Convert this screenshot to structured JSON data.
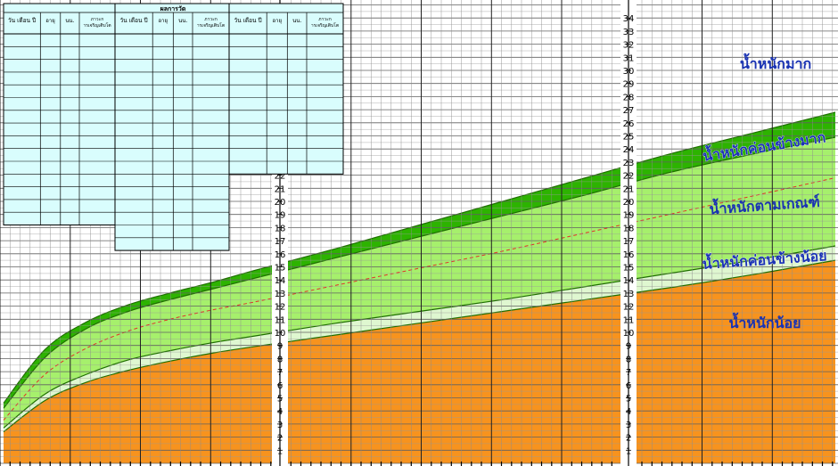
{
  "table": {
    "title": "ผลการวัด",
    "group_count": 3,
    "headers": [
      "วัน เดือน ปี",
      "อายุ",
      "นน.",
      "ภาวะการเจริญเติบโต"
    ],
    "row_counts": [
      15,
      17,
      11
    ]
  },
  "colors": {
    "too_heavy": "#ffffff",
    "somewhat_heavy": "#2db300",
    "normal": "#a6f06c",
    "somewhat_light": "#dff7d0",
    "light": "#f7931e",
    "median_line": "#e0322b",
    "label_text": "#1a33b3",
    "table_bg": "#d9fdfd"
  },
  "chart_data": {
    "type": "area",
    "title": "",
    "xlabel": "",
    "ylabel": "",
    "ylim": [
      0,
      35
    ],
    "x": [
      0,
      0.05,
      0.1,
      0.15,
      0.2,
      0.25,
      0.3,
      0.4,
      0.5,
      0.6,
      0.7,
      0.8,
      0.9,
      1.0
    ],
    "y_ticks": [
      "1",
      "2",
      "3",
      "4",
      "5",
      "6",
      "7",
      "8",
      "9",
      "10",
      "11",
      "12",
      "13",
      "14",
      "15",
      "16",
      "17",
      "18",
      "19",
      "20",
      "21",
      "22",
      "23",
      "24",
      "25",
      "26",
      "27",
      "28",
      "29",
      "30",
      "31",
      "32",
      "33",
      "34"
    ],
    "series": [
      {
        "name": "น้ำหนักน้อย",
        "values": [
          2.4,
          4.8,
          6.2,
          7.1,
          7.8,
          8.4,
          8.9,
          9.8,
          10.7,
          11.6,
          12.5,
          13.4,
          14.4,
          15.5
        ]
      },
      {
        "name": "น้ำหนักค่อนข้างน้อย",
        "values": [
          2.7,
          5.3,
          6.8,
          7.9,
          8.6,
          9.2,
          9.7,
          10.7,
          11.6,
          12.5,
          13.5,
          14.5,
          15.5,
          16.6
        ]
      },
      {
        "name": "น้ำหนักตามเกณฑ์",
        "values": [
          3.3,
          6.8,
          8.8,
          10.1,
          11.0,
          11.7,
          12.3,
          13.6,
          14.9,
          16.2,
          17.6,
          19.0,
          20.4,
          21.8
        ]
      },
      {
        "name": "น้ำหนักค่อนข้างมาก",
        "values": [
          4.2,
          8.1,
          10.3,
          11.6,
          12.5,
          13.3,
          14.1,
          15.7,
          17.3,
          18.9,
          20.5,
          22.2,
          23.6,
          24.9
        ]
      },
      {
        "name": "น้ำหนักมาก",
        "values": [
          4.6,
          8.7,
          10.8,
          12.1,
          13.0,
          13.8,
          14.7,
          16.4,
          18.2,
          20.0,
          21.8,
          23.6,
          25.2,
          26.8
        ]
      }
    ],
    "labels": [
      "น้ำหนักมาก",
      "น้ำหนักค่อนข้างมาก",
      "น้ำหนักตามเกณฑ์",
      "น้ำหนักค่อนข้างน้อย",
      "น้ำหนักน้อย"
    ]
  }
}
